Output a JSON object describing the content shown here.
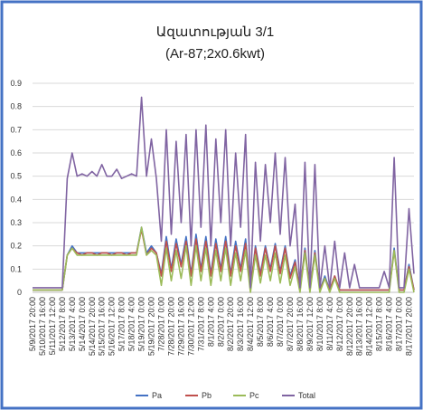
{
  "chart_data": {
    "type": "line",
    "title": "Ազատության 3/1",
    "subtitle": "(Ar-87;2x0.6kwt)",
    "categories": [
      "5/9/2017 20:00",
      null,
      "5/10/2017 16:00",
      null,
      "5/11/2017 12:00",
      null,
      "5/12/2017 8:00",
      null,
      "5/13/2017 4:00",
      null,
      "5/14/2017 0:00",
      null,
      "5/14/2017 20:00",
      null,
      "5/15/2017 16:00",
      null,
      "5/16/2017 12:00",
      null,
      "5/17/2017 8:00",
      null,
      "5/18/2017 4:00",
      null,
      "5/19/2017 0:00",
      null,
      "5/19/2017 20:00",
      null,
      "7/28/2017 0:00",
      null,
      "7/28/2017 20:00",
      null,
      "7/29/2017 16:00",
      null,
      "7/30/2017 12:00",
      null,
      "7/31/2017 8:00",
      null,
      "8/1/2017 4:00",
      null,
      "8/2/2017 0:00",
      null,
      "8/2/2017 20:00",
      null,
      "8/3/2017 16:00",
      null,
      "8/4/2017 12:00",
      null,
      "8/5/2017 8:00",
      null,
      "8/6/2017 4:00",
      null,
      "8/7/2017 0:00",
      null,
      "8/7/2017 20:00",
      null,
      "8/8/2017 16:00",
      null,
      "8/9/2017 12:00",
      null,
      "8/10/2017 8:00",
      null,
      "8/11/2017 4:00",
      null,
      "8/12/2017 0:00",
      null,
      "8/12/2017 20:00",
      null,
      "8/13/2017 16:00",
      null,
      "8/14/2017 12:00",
      null,
      "8/15/2017 8:00",
      null,
      "8/16/2017 4:00",
      null,
      "8/17/2017 0:00",
      null,
      "8/17/2017 20:00",
      null
    ],
    "series": [
      {
        "name": "Pa",
        "color": "#4472c4",
        "values": [
          0.01,
          0.01,
          0.01,
          0.01,
          0.01,
          0.01,
          0.01,
          0.16,
          0.2,
          0.17,
          0.17,
          0.17,
          0.17,
          0.17,
          0.17,
          0.17,
          0.17,
          0.17,
          0.17,
          0.17,
          0.17,
          0.17,
          0.28,
          0.17,
          0.2,
          0.17,
          0.08,
          0.24,
          0.1,
          0.23,
          0.12,
          0.24,
          0.08,
          0.25,
          0.1,
          0.24,
          0.08,
          0.23,
          0.1,
          0.24,
          0.08,
          0.22,
          0.1,
          0.23,
          0.01,
          0.2,
          0.08,
          0.2,
          0.1,
          0.21,
          0.09,
          0.2,
          0.07,
          0.14,
          0.01,
          0.19,
          0.01,
          0.18,
          0.01,
          0.07,
          0.01,
          0.07,
          0.01,
          0.01,
          0.01,
          0.01,
          0.01,
          0.01,
          0.01,
          0.01,
          0.01,
          0.01,
          0.01,
          0.19,
          0.01,
          0.01,
          0.12,
          0.01
        ]
      },
      {
        "name": "Pb",
        "color": "#c0504d",
        "values": [
          0.01,
          0.01,
          0.01,
          0.01,
          0.01,
          0.01,
          0.01,
          0.16,
          0.19,
          0.17,
          0.16,
          0.17,
          0.17,
          0.16,
          0.17,
          0.17,
          0.16,
          0.17,
          0.17,
          0.16,
          0.17,
          0.17,
          0.27,
          0.16,
          0.19,
          0.17,
          0.07,
          0.22,
          0.09,
          0.21,
          0.11,
          0.22,
          0.07,
          0.23,
          0.09,
          0.22,
          0.07,
          0.21,
          0.09,
          0.22,
          0.07,
          0.2,
          0.09,
          0.21,
          0.01,
          0.19,
          0.07,
          0.19,
          0.09,
          0.2,
          0.08,
          0.19,
          0.06,
          0.13,
          0.01,
          0.18,
          0.01,
          0.17,
          0.01,
          0.06,
          0.01,
          0.07,
          0.01,
          0.01,
          0.01,
          0.01,
          0.01,
          0.01,
          0.01,
          0.01,
          0.01,
          0.01,
          0.01,
          0.18,
          0.01,
          0.01,
          0.11,
          0.01
        ]
      },
      {
        "name": "Pc",
        "color": "#9bbb59",
        "values": [
          0.01,
          0.01,
          0.01,
          0.01,
          0.01,
          0.01,
          0.01,
          0.16,
          0.19,
          0.16,
          0.16,
          0.16,
          0.16,
          0.16,
          0.16,
          0.16,
          0.16,
          0.16,
          0.16,
          0.16,
          0.16,
          0.16,
          0.28,
          0.16,
          0.18,
          0.16,
          0.03,
          0.19,
          0.05,
          0.18,
          0.06,
          0.2,
          0.03,
          0.2,
          0.05,
          0.19,
          0.03,
          0.18,
          0.05,
          0.19,
          0.03,
          0.17,
          0.05,
          0.18,
          0.0,
          0.16,
          0.04,
          0.16,
          0.05,
          0.17,
          0.04,
          0.16,
          0.03,
          0.11,
          0.0,
          0.17,
          0.0,
          0.16,
          0.0,
          0.06,
          0.0,
          0.06,
          0.0,
          0.0,
          0.0,
          0.0,
          0.0,
          0.0,
          0.0,
          0.0,
          0.0,
          0.0,
          0.0,
          0.18,
          0.0,
          0.0,
          0.1,
          0.0
        ]
      },
      {
        "name": "Total",
        "color": "#8064a2",
        "values": [
          0.02,
          0.02,
          0.02,
          0.02,
          0.02,
          0.02,
          0.02,
          0.49,
          0.6,
          0.5,
          0.51,
          0.5,
          0.52,
          0.5,
          0.55,
          0.5,
          0.5,
          0.53,
          0.49,
          0.5,
          0.51,
          0.5,
          0.84,
          0.5,
          0.66,
          0.49,
          0.22,
          0.7,
          0.25,
          0.65,
          0.3,
          0.68,
          0.2,
          0.7,
          0.28,
          0.72,
          0.2,
          0.66,
          0.3,
          0.7,
          0.2,
          0.6,
          0.28,
          0.68,
          0.02,
          0.56,
          0.22,
          0.55,
          0.3,
          0.6,
          0.25,
          0.58,
          0.2,
          0.38,
          0.02,
          0.56,
          0.02,
          0.55,
          0.02,
          0.2,
          0.02,
          0.22,
          0.02,
          0.17,
          0.02,
          0.12,
          0.02,
          0.02,
          0.02,
          0.02,
          0.02,
          0.09,
          0.02,
          0.58,
          0.02,
          0.02,
          0.36,
          0.08
        ]
      }
    ],
    "ylim": [
      0,
      0.9
    ],
    "yticks": [
      0,
      0.1,
      0.2,
      0.3,
      0.4,
      0.5,
      0.6,
      0.7,
      0.8,
      0.9
    ],
    "grid": true
  }
}
